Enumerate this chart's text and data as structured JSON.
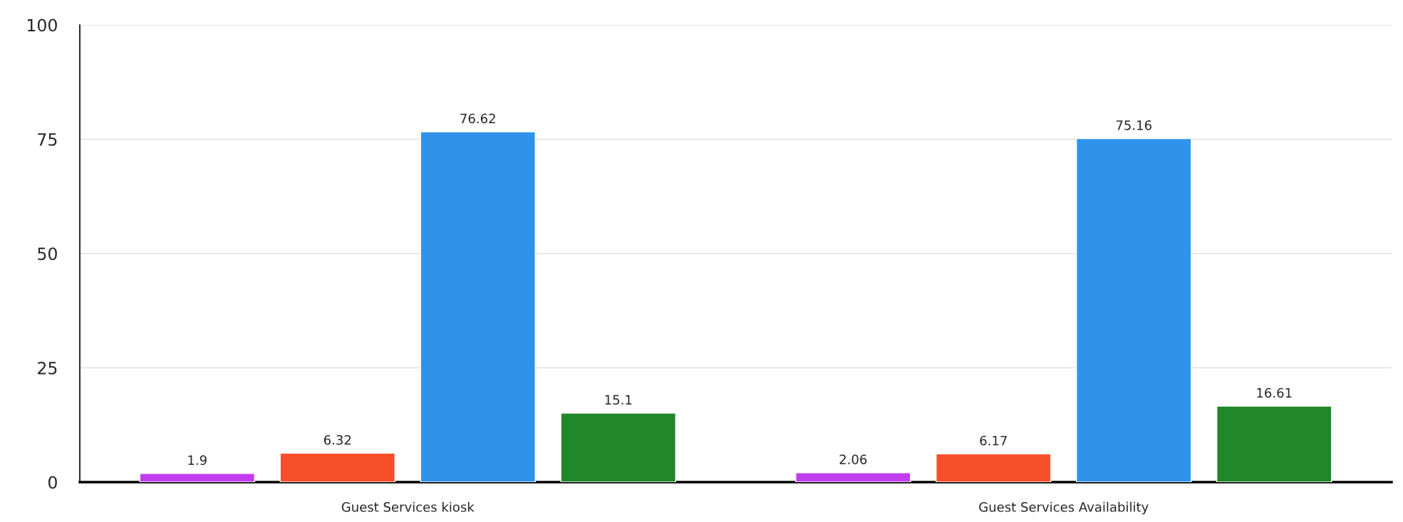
{
  "chart_data": {
    "type": "bar",
    "categories": [
      "Guest Services kiosk",
      "Guest Services Availability"
    ],
    "series": [
      {
        "color": "#c23cf0",
        "values": [
          1.9,
          2.06
        ]
      },
      {
        "color": "#f84f2b",
        "values": [
          6.32,
          6.17
        ]
      },
      {
        "color": "#2f93ea",
        "values": [
          76.62,
          75.16
        ]
      },
      {
        "color": "#208828",
        "values": [
          15.1,
          16.61
        ]
      }
    ],
    "ylim": [
      0,
      100
    ],
    "yticks": [
      0,
      25,
      50,
      75,
      100
    ],
    "grid": "y",
    "data_labels": true
  }
}
